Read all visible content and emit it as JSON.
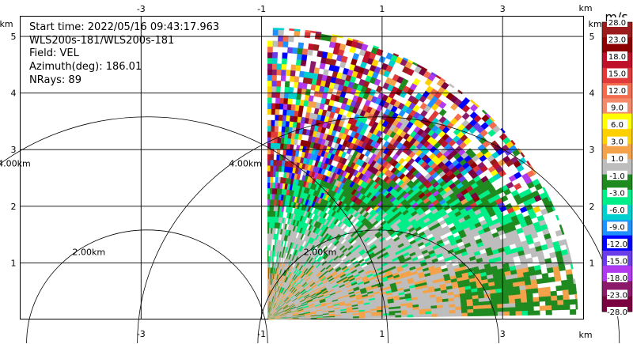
{
  "chart_data": {
    "type": "heatmap",
    "title": "",
    "annotations": {
      "start_time": "Start time: 2022/05/16 09:43:17.963",
      "instrument": "WLS200s-181/WLS200s-181",
      "field": "Field: VEL",
      "azimuth": "Azimuth(deg): 186.01",
      "nrays": "NRays: 89"
    },
    "axis_unit": "km",
    "x_ticks": [
      {
        "value": -3,
        "label": "-3"
      },
      {
        "value": -1,
        "label": "-1"
      },
      {
        "value": 1,
        "label": "1"
      },
      {
        "value": 3,
        "label": "3"
      }
    ],
    "y_ticks": [
      {
        "value": 1,
        "label": "1"
      },
      {
        "value": 2,
        "label": "2"
      },
      {
        "value": 3,
        "label": "3"
      },
      {
        "value": 4,
        "label": "4"
      },
      {
        "value": 5,
        "label": "5"
      }
    ],
    "xlim": [
      -5.0,
      4.35
    ],
    "ylim": [
      0.0,
      5.35
    ],
    "range_rings": [
      {
        "radius_km": 2.0,
        "label": "2.00km"
      },
      {
        "radius_km": 4.0,
        "label": "4.00km"
      }
    ],
    "grid": true,
    "sector": {
      "center": [
        -0.9,
        0.0
      ],
      "max_range_km": 5.15,
      "az_start_deg": 0,
      "az_end_deg": 89
    },
    "colorbar": {
      "unit": "m/s",
      "ticks": [
        "28.0",
        "23.0",
        "18.0",
        "15.0",
        "12.0",
        "9.0",
        "6.0",
        "3.0",
        "1.0",
        "-1.0",
        "-3.0",
        "-6.0",
        "-9.0",
        "-12.0",
        "-15.0",
        "-18.0",
        "-23.0",
        "-28.0"
      ],
      "colors": [
        "#9b1c1c",
        "#8b0000",
        "#c0112a",
        "#e03a3a",
        "#f26c4f",
        "#f58a6a",
        "#ffff00",
        "#ffd000",
        "#f4a24a",
        "#bdbdbd",
        "#1f8a1f",
        "#00ee88",
        "#00cfcf",
        "#1e90ff",
        "#0000ff",
        "#6a3de8",
        "#b23aee",
        "#8b1a6a",
        "#7a0040"
      ]
    }
  }
}
